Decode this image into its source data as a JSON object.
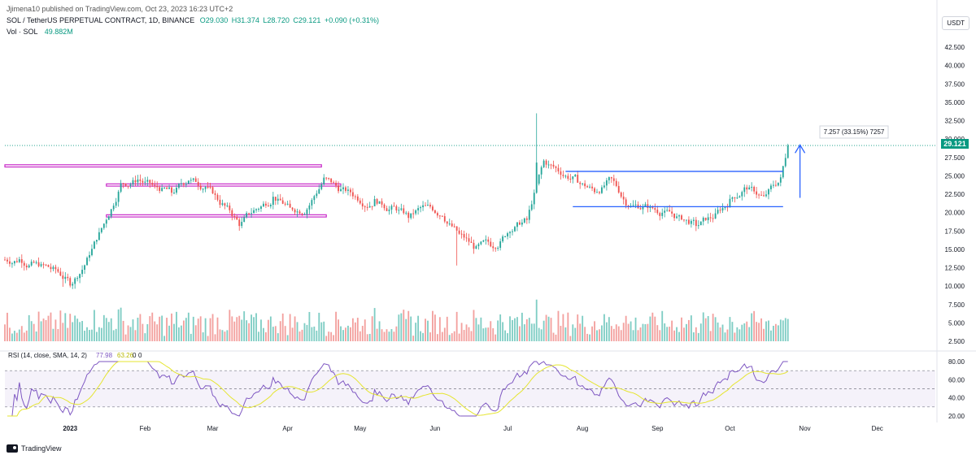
{
  "header": {
    "published": "Jjimena10 published on TradingView.com, Oct 23, 2023 16:23 UTC+2",
    "symbol": "SOL / TetherUS PERPETUAL CONTRACT, 1D, BINANCE",
    "ohlc": {
      "o": "O29.030",
      "h": "H31.374",
      "l": "L28.720",
      "c": "C29.121",
      "chg": "+0.090 (+0.31%)"
    },
    "vol_label": "Vol · SOL",
    "vol_value": "49.882M"
  },
  "currency": "USDT",
  "rsi_label": "RSI (14, close, SMA, 14, 2)",
  "rsi_values": [
    "77.98",
    "63.26",
    "0",
    "0"
  ],
  "last_price": "29.121",
  "measure_label": "7.257 (33.15%) 7257",
  "footer": {
    "brand": "TradingView"
  },
  "colors": {
    "up": "#26a69a",
    "down": "#ef5350",
    "rsi": "#7e57c2",
    "rsi_ma": "#e5e530",
    "box": "#c829c8",
    "trend": "#2962ff"
  },
  "icon": "tradingview-logo-icon",
  "chart_data": {
    "type": "candlestick",
    "price_axis": [
      "42.500",
      "40.000",
      "37.500",
      "35.000",
      "32.500",
      "30.000",
      "27.500",
      "25.000",
      "22.500",
      "20.000",
      "17.500",
      "15.000",
      "12.500",
      "10.000",
      "7.500",
      "5.000",
      "2.500"
    ],
    "rsi_axis": [
      "80.00",
      "60.00",
      "40.00",
      "20.00"
    ],
    "time_axis": [
      "2023",
      "Feb",
      "Mar",
      "Apr",
      "May",
      "Jun",
      "Jul",
      "Aug",
      "Sep",
      "Oct",
      "Nov",
      "Dec"
    ],
    "price_series": {
      "name": "SOL / TetherUS PERPETUAL CONTRACT",
      "x": [
        "2022-12-05",
        "2022-12-12",
        "2022-12-19",
        "2022-12-26",
        "2023-01-02",
        "2023-01-09",
        "2023-01-16",
        "2023-01-23",
        "2023-01-30",
        "2023-02-06",
        "2023-02-13",
        "2023-02-20",
        "2023-02-27",
        "2023-03-06",
        "2023-03-13",
        "2023-03-20",
        "2023-03-27",
        "2023-04-03",
        "2023-04-10",
        "2023-04-17",
        "2023-04-24",
        "2023-05-01",
        "2023-05-08",
        "2023-05-15",
        "2023-05-22",
        "2023-05-29",
        "2023-06-05",
        "2023-06-12",
        "2023-06-19",
        "2023-06-26",
        "2023-07-03",
        "2023-07-10",
        "2023-07-17",
        "2023-07-24",
        "2023-07-31",
        "2023-08-07",
        "2023-08-14",
        "2023-08-21",
        "2023-08-28",
        "2023-09-04",
        "2023-09-11",
        "2023-09-18",
        "2023-09-25",
        "2023-10-02",
        "2023-10-09",
        "2023-10-16",
        "2023-10-23"
      ],
      "close": [
        13.6,
        13.0,
        12.2,
        10.5,
        13.5,
        18.5,
        23.8,
        24.5,
        23.4,
        22.8,
        24.5,
        23.5,
        21.0,
        18.5,
        20.5,
        22.0,
        20.5,
        20.5,
        24.5,
        23.0,
        22.0,
        21.5,
        20.5,
        19.5,
        20.8,
        19.8,
        17.0,
        15.0,
        15.5,
        17.8,
        19.0,
        27.0,
        25.5,
        24.5,
        23.0,
        24.5,
        21.0,
        20.8,
        20.0,
        19.2,
        18.4,
        19.4,
        21.5,
        23.5,
        22.0,
        24.5,
        29.121
      ]
    },
    "lines": {
      "box_top_high": 26.5,
      "box_top_low": 23.9,
      "box_bottom": 19.7,
      "channel_top": 25.6,
      "channel_bottom": 20.8
    },
    "measure": {
      "range": 7.257,
      "percent": 33.15
    },
    "volume_unit": "M",
    "rsi_levels": [
      70,
      50,
      30
    ],
    "rsi_last": 77.98,
    "rsi_ma_last": 63.26
  }
}
